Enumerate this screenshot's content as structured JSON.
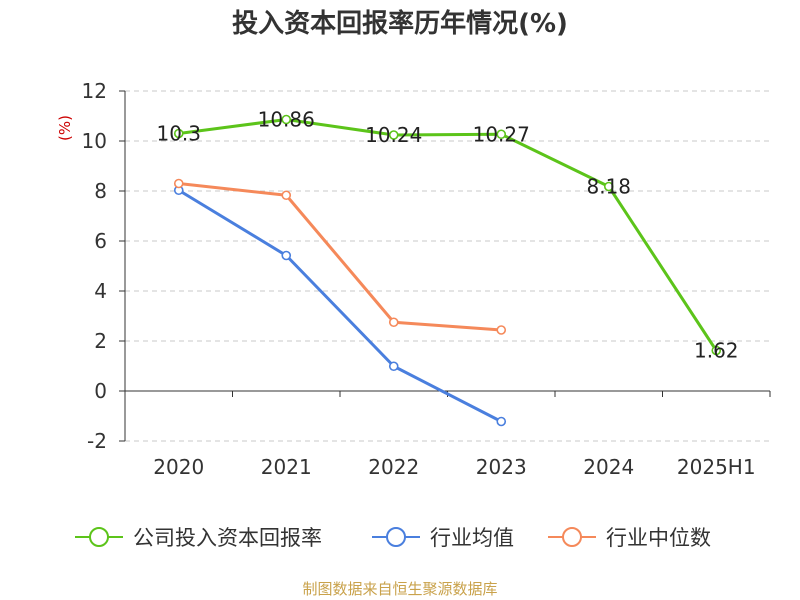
{
  "chart_data": {
    "type": "line",
    "title": "投入资本回报率历年情况(%)",
    "ylabel": "(%)",
    "categories": [
      "2020",
      "2021",
      "2022",
      "2023",
      "2024",
      "2025H1"
    ],
    "ylim": [
      -2,
      12
    ],
    "yticks": [
      12,
      10,
      8,
      6,
      4,
      2,
      0,
      -2
    ],
    "grid": true,
    "legend_position": "bottom",
    "series": [
      {
        "name": "公司投入资本回报率",
        "color": "#5cc41a",
        "values": [
          10.3,
          10.86,
          10.24,
          10.27,
          8.18,
          1.62
        ],
        "labels": [
          "10.3",
          "10.86",
          "10.24",
          "10.27",
          "8.18",
          "1.62"
        ]
      },
      {
        "name": "行业均值",
        "color": "#4a7fde",
        "values": [
          8.03,
          5.42,
          0.99,
          -1.22,
          null,
          null
        ]
      },
      {
        "name": "行业中位数",
        "color": "#f5895a",
        "values": [
          8.3,
          7.83,
          2.75,
          2.44,
          null,
          null
        ]
      }
    ],
    "source": "制图数据来自恒生聚源数据库"
  }
}
